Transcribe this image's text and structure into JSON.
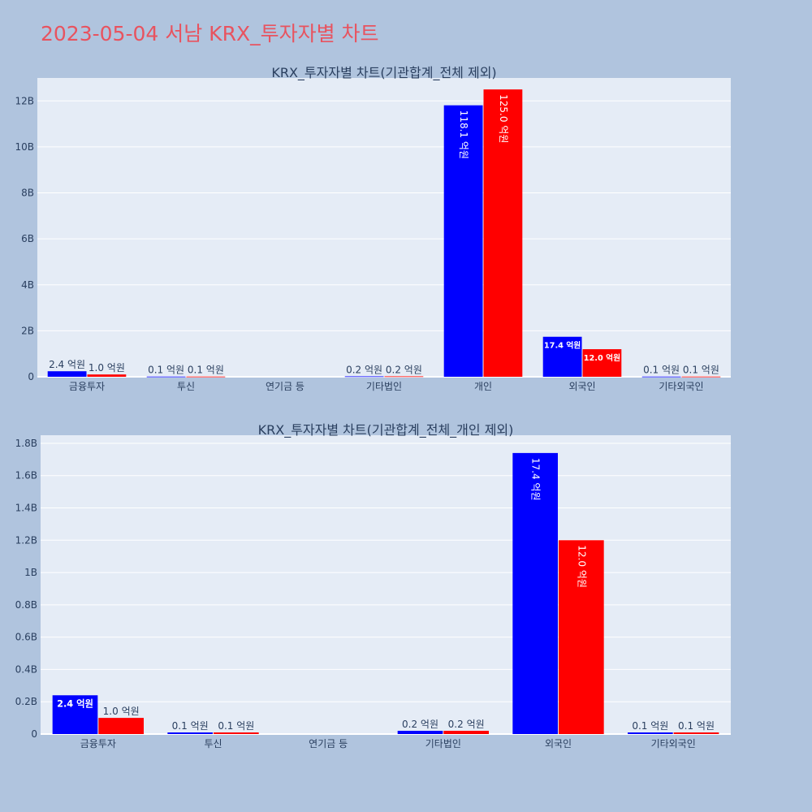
{
  "page": {
    "title": "2023-05-04 서남 KRX_투자자별 차트",
    "title_color": "#e8535f",
    "background": "#b0c4de",
    "plot_background": "#e5ecf6"
  },
  "chart_data": [
    {
      "type": "bar",
      "title": "KRX_투자자별 차트(기관합계_전체 제외)",
      "categories": [
        "금융투자",
        "투신",
        "연기금 등",
        "기타법인",
        "개인",
        "외국인",
        "기타외국인"
      ],
      "series": [
        {
          "color": "#0000ff",
          "values": [
            240000000,
            10000000,
            0,
            20000000,
            11810000000,
            1740000000,
            10000000
          ],
          "labels": [
            "2.4 억원",
            "0.1 억원",
            "",
            "0.2 억원",
            "118.1 억원",
            "17.4 억원",
            "0.1 억원"
          ]
        },
        {
          "color": "#ff0000",
          "values": [
            100000000,
            10000000,
            0,
            20000000,
            12500000000,
            1200000000,
            10000000
          ],
          "labels": [
            "1.0 억원",
            "0.1 억원",
            "",
            "0.2 억원",
            "125.0 억원",
            "12.0 억원",
            "0.1 억원"
          ]
        }
      ],
      "ylim": [
        0,
        13000000000
      ],
      "yticks": [
        0,
        2000000000,
        4000000000,
        6000000000,
        8000000000,
        10000000000,
        12000000000
      ],
      "ytick_labels": [
        "0",
        "2B",
        "4B",
        "6B",
        "8B",
        "10B",
        "12B"
      ],
      "grid": true
    },
    {
      "type": "bar",
      "title": "KRX_투자자별 차트(기관합계_전체_개인 제외)",
      "categories": [
        "금융투자",
        "투신",
        "연기금 등",
        "기타법인",
        "외국인",
        "기타외국인"
      ],
      "series": [
        {
          "color": "#0000ff",
          "values": [
            240000000,
            10000000,
            0,
            20000000,
            1740000000,
            10000000
          ],
          "labels": [
            "2.4 억원",
            "0.1 억원",
            "",
            "0.2 억원",
            "17.4 억원",
            "0.1 억원"
          ]
        },
        {
          "color": "#ff0000",
          "values": [
            100000000,
            10000000,
            0,
            20000000,
            1200000000,
            10000000
          ],
          "labels": [
            "1.0 억원",
            "0.1 억원",
            "",
            "0.2 억원",
            "12.0 억원",
            "0.1 억원"
          ]
        }
      ],
      "ylim": [
        0,
        1850000000
      ],
      "yticks": [
        0,
        200000000,
        400000000,
        600000000,
        800000000,
        1000000000,
        1200000000,
        1400000000,
        1600000000,
        1800000000
      ],
      "ytick_labels": [
        "0",
        "0.2B",
        "0.4B",
        "0.6B",
        "0.8B",
        "1B",
        "1.2B",
        "1.4B",
        "1.6B",
        "1.8B"
      ],
      "grid": true
    }
  ]
}
